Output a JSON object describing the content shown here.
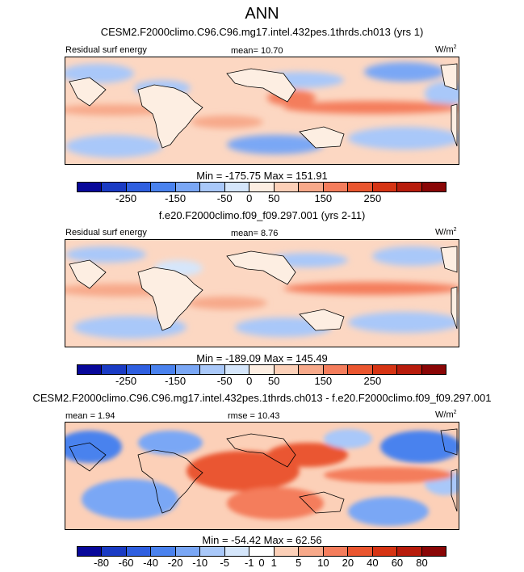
{
  "title": "ANN",
  "panels": [
    {
      "case": "CESM2.F2000climo.C96.C96.mg17.intel.432pes.1thrds.ch013 (yrs 1)",
      "left_label": "Residual surf energy",
      "center_label": "mean=  10.70",
      "units": "W/m",
      "units_sup": "2",
      "minmax": "Min = -175.75 Max = 151.91"
    },
    {
      "case": "f.e20.F2000climo.f09_f09.297.001 (yrs 2-11)",
      "left_label": "Residual surf energy",
      "center_label": "mean=  8.76",
      "units": "W/m",
      "units_sup": "2",
      "minmax": "Min = -189.09 Max = 145.49"
    },
    {
      "case": "CESM2.F2000climo.C96.C96.mg17.intel.432pes.1thrds.ch013 - f.e20.F2000climo.f09_f09.297.001",
      "left_label": "mean =  1.94",
      "center_label": "rmse =  10.43",
      "units": "W/m",
      "units_sup": "2",
      "minmax": "Min = -54.42 Max = 62.56"
    }
  ],
  "colorbar_main": {
    "colors": [
      "#08089a",
      "#1a3bc4",
      "#2f5fe0",
      "#4a82ee",
      "#7aa7f5",
      "#a9c8f9",
      "#d5e6fb",
      "#fdeee2",
      "#fcd0b8",
      "#f7a98a",
      "#f47d5c",
      "#ea5630",
      "#d63414",
      "#b81c0c",
      "#8a0606"
    ],
    "tick_labels": [
      "-250",
      "-150",
      "-50",
      "0",
      "50",
      "150",
      "250"
    ],
    "tick_boundaries": [
      2,
      4,
      6,
      7,
      8,
      10,
      12
    ]
  },
  "colorbar_diff": {
    "colors": [
      "#08089a",
      "#1a3bc4",
      "#2f5fe0",
      "#4a82ee",
      "#7aa7f5",
      "#a9c8f9",
      "#d5e6fb",
      "#ffffff",
      "#fcd0b8",
      "#f7a98a",
      "#f47d5c",
      "#ea5630",
      "#d63414",
      "#b81c0c",
      "#8a0606"
    ],
    "tick_labels": [
      "-80",
      "-60",
      "-40",
      "-20",
      "-10",
      "-5",
      "-1",
      "0",
      "1",
      "5",
      "10",
      "20",
      "40",
      "60",
      "80"
    ],
    "tick_boundaries": [
      1,
      2,
      3,
      4,
      5,
      6,
      7,
      7.5,
      8,
      9,
      10,
      11,
      12,
      13,
      14
    ]
  }
}
